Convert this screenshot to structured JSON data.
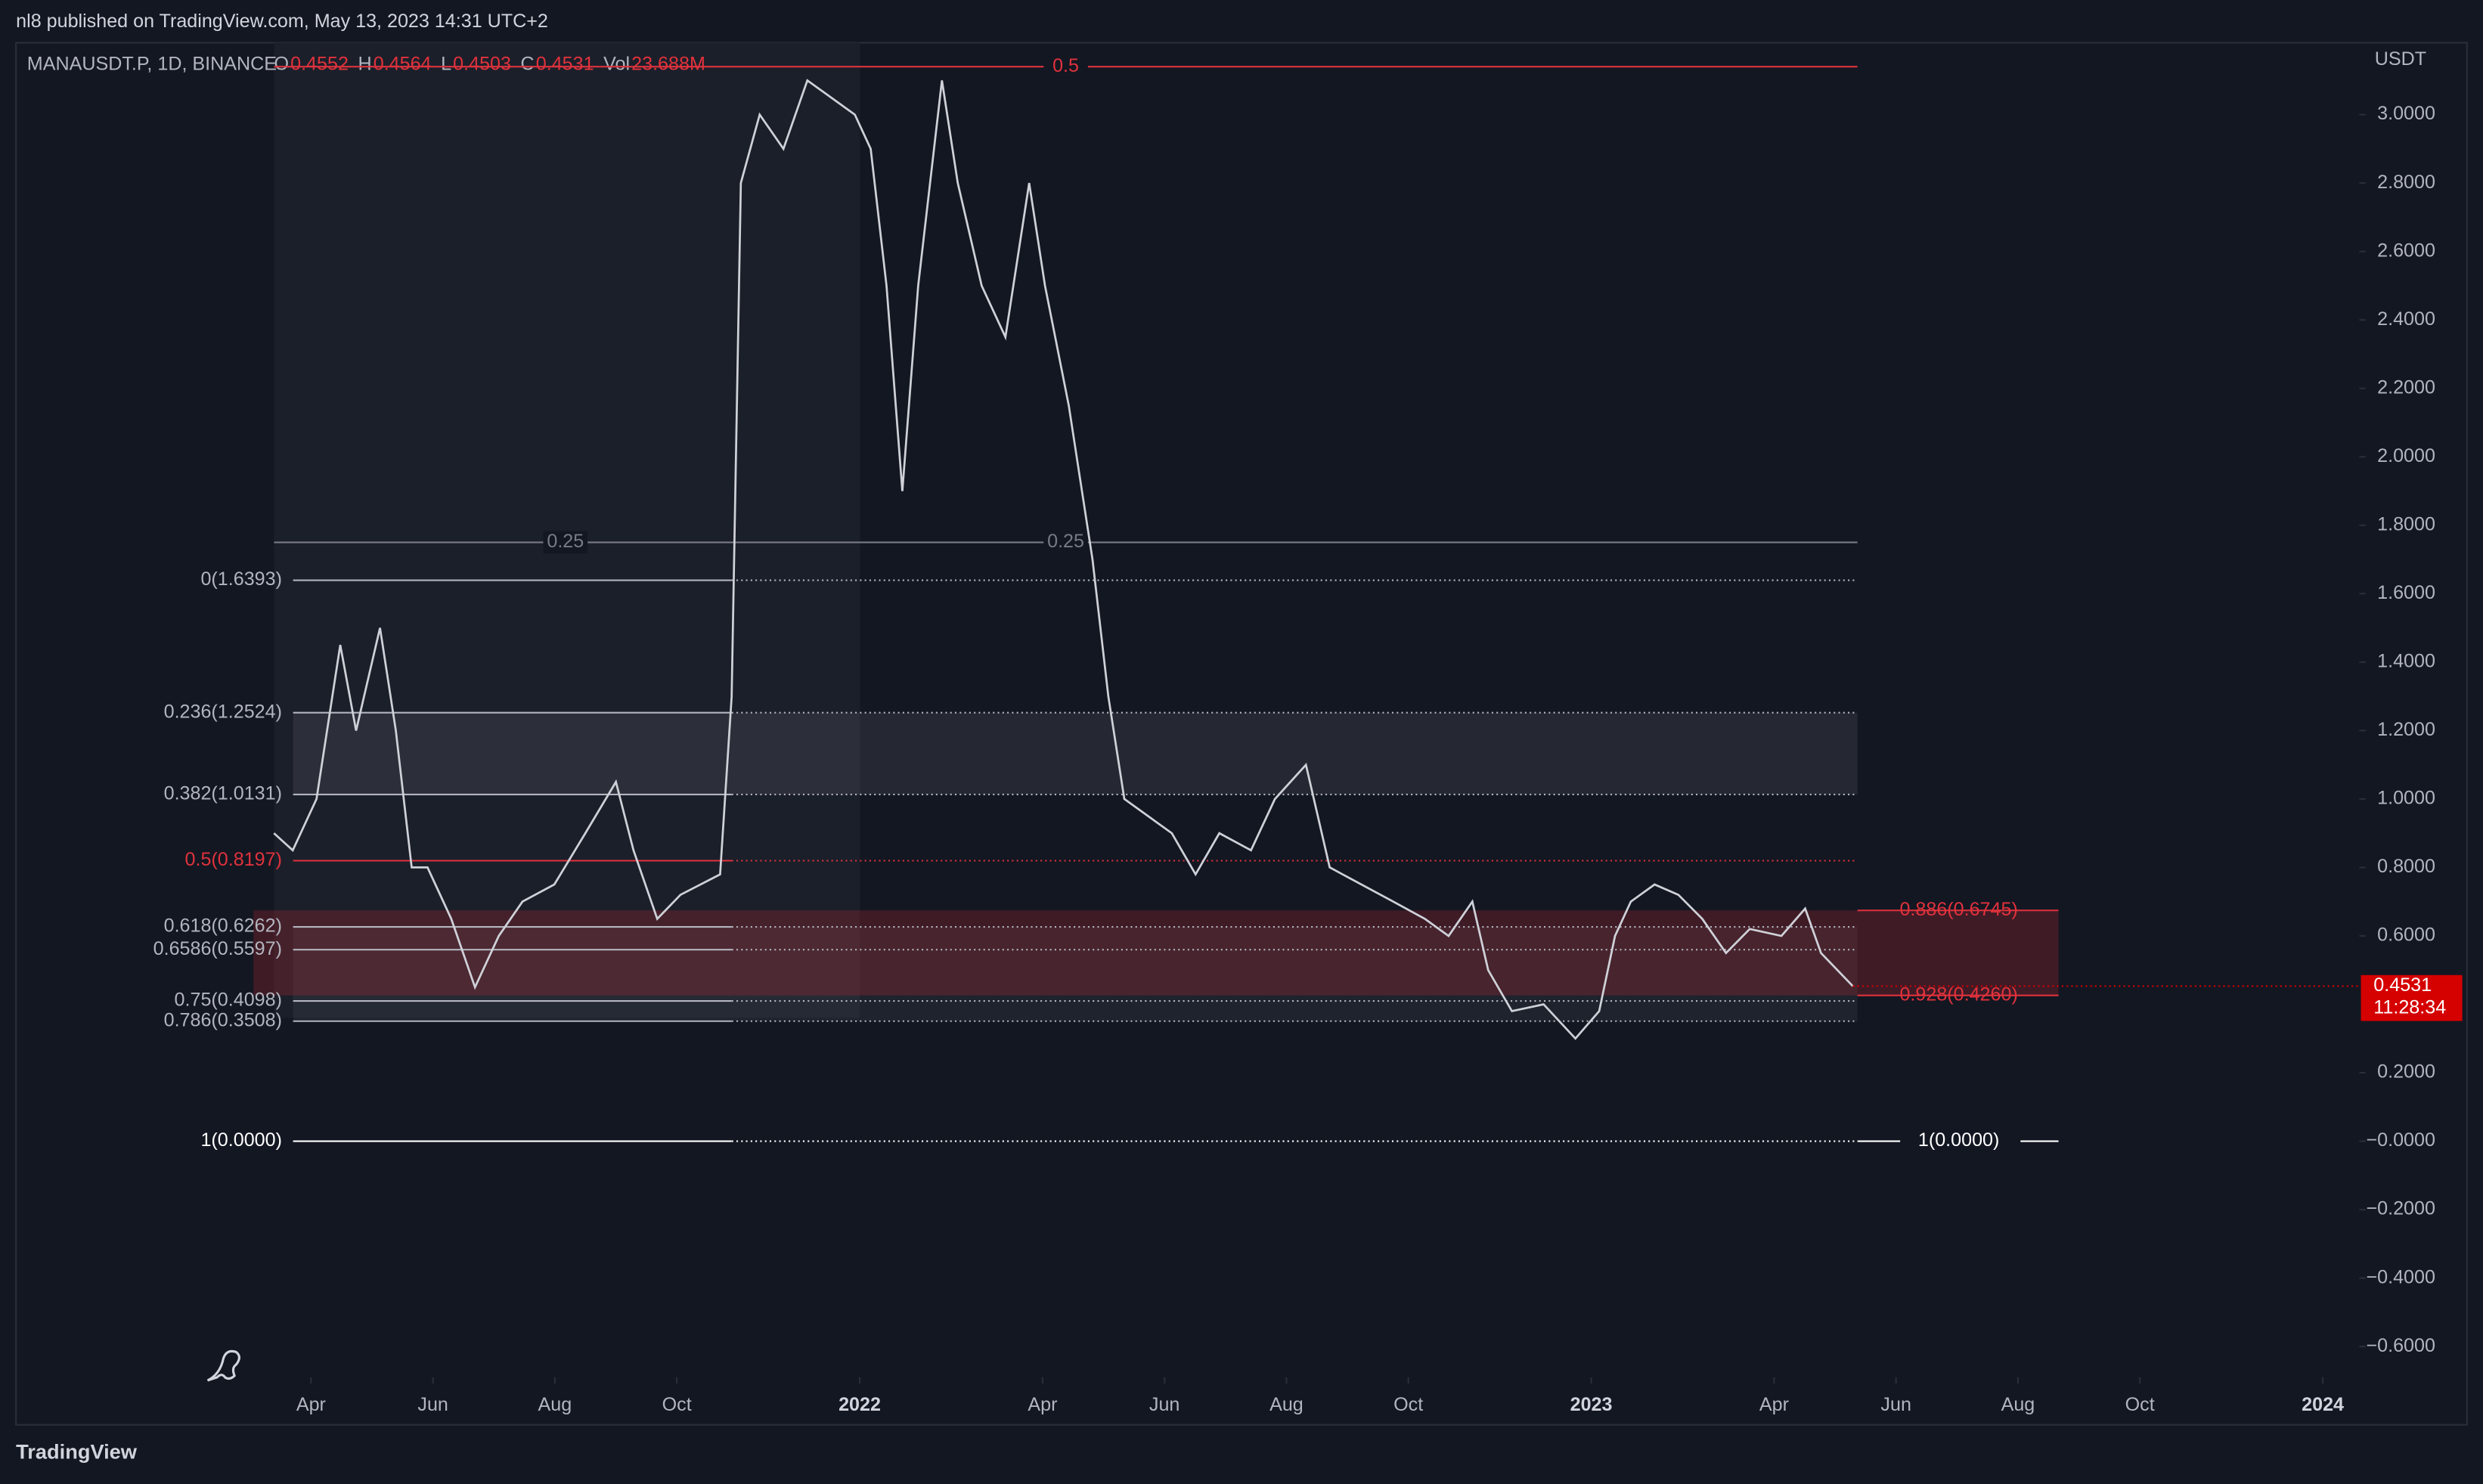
{
  "header": {
    "published": "nl8 published on TradingView.com, May 13, 2023 14:31 UTC+2",
    "symbol": "MANAUSDT.P, 1D, BINANCE",
    "ohlc": [
      {
        "key": "O",
        "value": "0.4552"
      },
      {
        "key": "H",
        "value": "0.4564"
      },
      {
        "key": "L",
        "value": "0.4503"
      },
      {
        "key": "C",
        "value": "0.4531"
      },
      {
        "key": "Vol",
        "value": "23.688M"
      }
    ],
    "brand": "TradingView"
  },
  "chart_data": {
    "type": "line",
    "currency": "USDT",
    "color": "#cfd1d8",
    "x": [
      2.39,
      2.7,
      3.09,
      3.48,
      3.74,
      4.13,
      4.39,
      4.65,
      4.91,
      5.3,
      5.69,
      6.08,
      6.47,
      6.99,
      7.5,
      8.0,
      8.29,
      8.68,
      9.06,
      9.71,
      9.9,
      10.05,
      10.36,
      10.75,
      11.14,
      11.53,
      11.92,
      12.18,
      12.44,
      12.7,
      12.96,
      13.35,
      13.61,
      14.0,
      14.39,
      14.78,
      15.04,
      15.43,
      15.82,
      16.08,
      16.34,
      16.73,
      17.12,
      17.51,
      17.9,
      18.42,
      18.81,
      19.32,
      19.71,
      20.23,
      20.75,
      21.27,
      21.66,
      22.05,
      22.31,
      22.7,
      23.22,
      23.74,
      24.13,
      24.39,
      24.65,
      25.04,
      25.43,
      25.82,
      26.21,
      26.6,
      27.12,
      27.51,
      27.77,
      28.29
    ],
    "values": [
      0.9,
      0.85,
      1.0,
      1.45,
      1.2,
      1.5,
      1.2,
      0.8,
      0.8,
      0.65,
      0.45,
      0.6,
      0.7,
      0.75,
      0.9,
      1.05,
      0.85,
      0.65,
      0.72,
      0.78,
      1.3,
      2.8,
      3.0,
      2.9,
      3.1,
      3.05,
      3.0,
      2.9,
      2.5,
      1.9,
      2.5,
      3.1,
      2.8,
      2.5,
      2.35,
      2.8,
      2.5,
      2.15,
      1.7,
      1.3,
      1.0,
      0.95,
      0.9,
      0.78,
      0.9,
      0.85,
      1.0,
      1.1,
      0.8,
      0.75,
      0.7,
      0.65,
      0.6,
      0.7,
      0.5,
      0.38,
      0.4,
      0.3,
      0.38,
      0.6,
      0.7,
      0.75,
      0.72,
      0.65,
      0.55,
      0.62,
      0.6,
      0.68,
      0.55,
      0.4531
    ],
    "xlim": [
      -1.84,
      36.6
    ],
    "xticks": [
      {
        "value": 3,
        "label": "Apr"
      },
      {
        "value": 5,
        "label": "Jun"
      },
      {
        "value": 7,
        "label": "Aug"
      },
      {
        "value": 9,
        "label": "Oct"
      },
      {
        "value": 12,
        "label": "2022"
      },
      {
        "value": 15,
        "label": "Apr"
      },
      {
        "value": 17,
        "label": "Jun"
      },
      {
        "value": 19,
        "label": "Aug"
      },
      {
        "value": 21,
        "label": "Oct"
      },
      {
        "value": 24,
        "label": "2023"
      },
      {
        "value": 27,
        "label": "Apr"
      },
      {
        "value": 29,
        "label": "Jun"
      },
      {
        "value": 31,
        "label": "Aug"
      },
      {
        "value": 33,
        "label": "Oct"
      },
      {
        "value": 36,
        "label": "2024"
      }
    ],
    "ylim": [
      -0.69,
      3.21
    ],
    "yticks": [
      {
        "value": -0.6,
        "label": "−0.6000"
      },
      {
        "value": -0.4,
        "label": "−0.4000"
      },
      {
        "value": -0.2,
        "label": "−0.2000"
      },
      {
        "value": 0,
        "label": "−0.0000"
      },
      {
        "value": 0.2,
        "label": "0.2000"
      },
      {
        "value": 0.6,
        "label": "0.6000"
      },
      {
        "value": 0.8,
        "label": "0.8000"
      },
      {
        "value": 1.0,
        "label": "1.0000"
      },
      {
        "value": 1.2,
        "label": "1.2000"
      },
      {
        "value": 1.4,
        "label": "1.4000"
      },
      {
        "value": 1.6,
        "label": "1.6000"
      },
      {
        "value": 1.8,
        "label": "1.8000"
      },
      {
        "value": 2.0,
        "label": "2.0000"
      },
      {
        "value": 2.2,
        "label": "2.2000"
      },
      {
        "value": 2.4,
        "label": "2.4000"
      },
      {
        "value": 2.6,
        "label": "2.6000"
      },
      {
        "value": 2.8,
        "label": "2.8000"
      },
      {
        "value": 3.0,
        "label": "3.0000"
      }
    ],
    "fib_levels": [
      {
        "value": 1.6393,
        "label": "0(1.6393)",
        "color": "#b2b5be"
      },
      {
        "value": 1.2524,
        "label": "0.236(1.2524)",
        "color": "#b2b5be"
      },
      {
        "value": 1.0131,
        "label": "0.382(1.0131)",
        "color": "#b2b5be"
      },
      {
        "value": 0.8197,
        "label": "0.5(0.8197)",
        "color": "#e0323c"
      },
      {
        "value": 0.6262,
        "label": "0.618(0.6262)",
        "color": "#b2b5be"
      },
      {
        "value": 0.5597,
        "label": "0.6586(0.5597)",
        "color": "#b2b5be"
      },
      {
        "value": 0.4098,
        "label": "0.75(0.4098)",
        "color": "#b2b5be"
      },
      {
        "value": 0.3508,
        "label": "0.786(0.3508)",
        "color": "#b2b5be"
      },
      {
        "value": 0,
        "label": "1(0.0000)",
        "color": "#ffffff"
      }
    ],
    "fib_right": [
      {
        "value": 0.6745,
        "label": "0.886(0.6745)",
        "color": "#e0323c"
      },
      {
        "value": 0.426,
        "label": "0.928(0.4260)",
        "color": "#e0323c"
      },
      {
        "value": 0,
        "label": "1(0.0000)",
        "color": "#ffffff"
      }
    ],
    "levels": [
      {
        "value": 1.75,
        "label": "0.25",
        "color": "#787b86"
      },
      {
        "value": 3.14,
        "label": "0.5",
        "color": "#e0323c"
      }
    ],
    "last_price": {
      "value": 0.4531,
      "label": "0.4531",
      "countdown": "11:28:34",
      "color": "#d50000"
    }
  }
}
